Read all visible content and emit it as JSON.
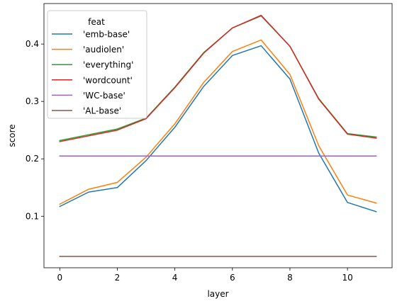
{
  "chart_data": {
    "type": "line",
    "xlabel": "layer",
    "ylabel": "score",
    "x": [
      0,
      1,
      2,
      3,
      4,
      5,
      6,
      7,
      8,
      9,
      10,
      11
    ],
    "xlim": [
      -0.55,
      11.55
    ],
    "ylim": [
      0.0103,
      0.4705
    ],
    "x_ticks": [
      0,
      2,
      4,
      6,
      8,
      10
    ],
    "y_ticks": [
      0.1,
      0.2,
      0.3,
      0.4
    ],
    "x_tick_labels": [
      "0",
      "2",
      "4",
      "6",
      "8",
      "10"
    ],
    "y_tick_labels": [
      "0.1",
      "0.2",
      "0.3",
      "0.4"
    ],
    "grid": false,
    "legend": {
      "title": "feat",
      "placement": "top-left"
    },
    "series": [
      {
        "name": "'emb-base'",
        "color": "#1f77b4",
        "values": [
          0.117,
          0.142,
          0.15,
          0.197,
          0.255,
          0.326,
          0.38,
          0.397,
          0.339,
          0.21,
          0.124,
          0.108
        ]
      },
      {
        "name": "'audiolen'",
        "color": "#ff7f0e",
        "values": [
          0.121,
          0.147,
          0.159,
          0.203,
          0.261,
          0.333,
          0.387,
          0.407,
          0.347,
          0.223,
          0.137,
          0.123
        ]
      },
      {
        "name": "'everything'",
        "color": "#2ca02c",
        "values": [
          0.232,
          0.242,
          0.252,
          0.271,
          0.325,
          0.385,
          0.428,
          0.449,
          0.396,
          0.305,
          0.244,
          0.238
        ]
      },
      {
        "name": "'wordcount'",
        "color": "#d62728",
        "values": [
          0.23,
          0.24,
          0.25,
          0.27,
          0.324,
          0.384,
          0.428,
          0.45,
          0.396,
          0.304,
          0.243,
          0.236
        ]
      },
      {
        "name": "'WC-base'",
        "color": "#9467bd",
        "values": [
          0.205,
          0.205,
          0.205,
          0.205,
          0.205,
          0.205,
          0.205,
          0.205,
          0.205,
          0.205,
          0.205,
          0.205
        ]
      },
      {
        "name": "'AL-base'",
        "color": "#8c564b",
        "values": [
          0.03,
          0.03,
          0.03,
          0.03,
          0.03,
          0.03,
          0.03,
          0.03,
          0.03,
          0.03,
          0.03,
          0.03
        ]
      }
    ]
  }
}
